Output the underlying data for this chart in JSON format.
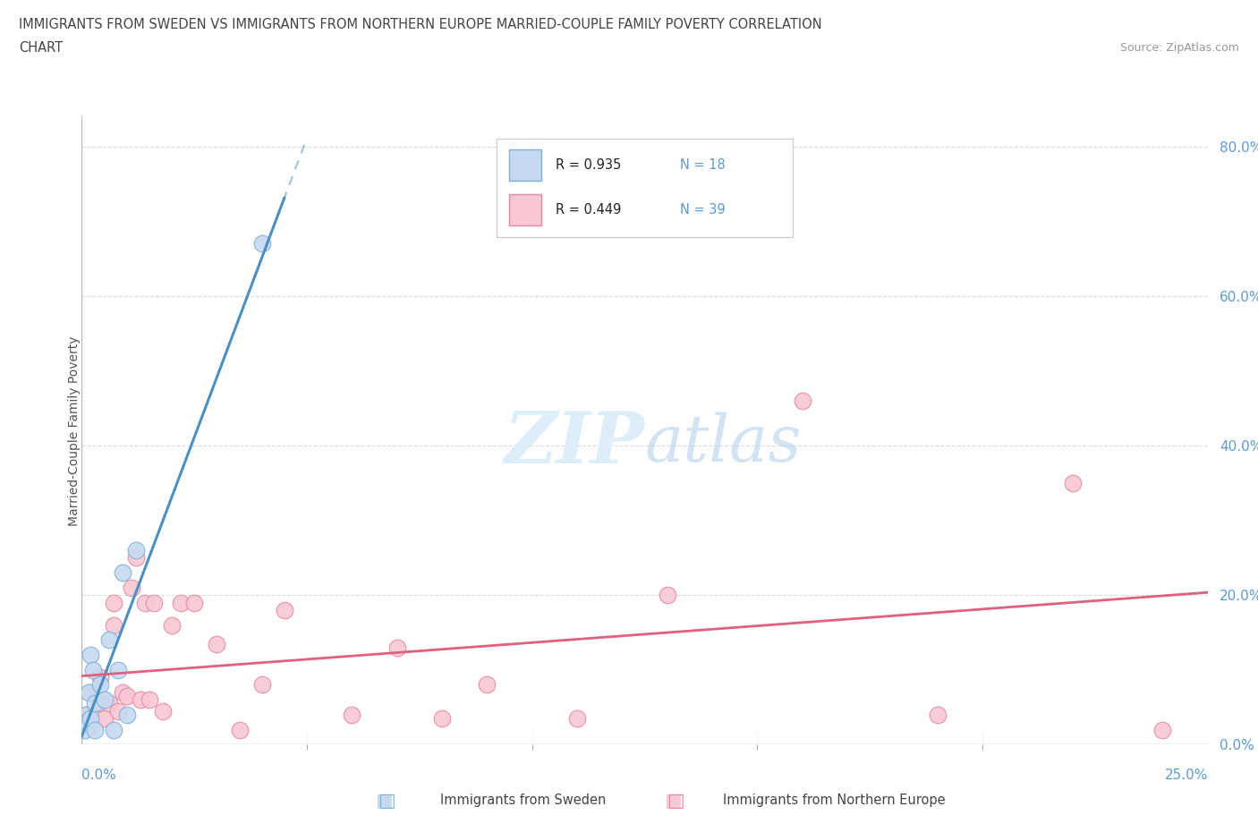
{
  "title_line1": "IMMIGRANTS FROM SWEDEN VS IMMIGRANTS FROM NORTHERN EUROPE MARRIED-COUPLE FAMILY POVERTY CORRELATION",
  "title_line2": "CHART",
  "source": "Source: ZipAtlas.com",
  "ylabel": "Married-Couple Family Poverty",
  "legend_blue_R": "R = 0.935",
  "legend_blue_N": "N = 18",
  "legend_pink_R": "R = 0.449",
  "legend_pink_N": "N = 39",
  "legend_label_blue": "Immigrants from Sweden",
  "legend_label_pink": "Immigrants from Northern Europe",
  "blue_fill": "#c5daf0",
  "blue_edge": "#7eb0d8",
  "blue_line": "#4a90c4",
  "pink_fill": "#f9c8d4",
  "pink_edge": "#e888a0",
  "pink_line": "#e06080",
  "title_color": "#444444",
  "source_color": "#999999",
  "axis_tick_color": "#5b9bd5",
  "grid_color": "#d8d8d8",
  "watermark_color": "#ddeef8",
  "blue_scatter_x": [
    0.0008,
    0.001,
    0.0012,
    0.0015,
    0.002,
    0.002,
    0.0025,
    0.003,
    0.003,
    0.004,
    0.005,
    0.006,
    0.007,
    0.008,
    0.009,
    0.01,
    0.012,
    0.04
  ],
  "blue_scatter_y": [
    0.02,
    0.04,
    0.03,
    0.07,
    0.035,
    0.12,
    0.1,
    0.02,
    0.055,
    0.08,
    0.06,
    0.14,
    0.02,
    0.1,
    0.23,
    0.04,
    0.26,
    0.67
  ],
  "pink_scatter_x": [
    0.0005,
    0.001,
    0.0015,
    0.002,
    0.002,
    0.003,
    0.004,
    0.004,
    0.005,
    0.006,
    0.007,
    0.007,
    0.008,
    0.009,
    0.01,
    0.011,
    0.012,
    0.013,
    0.014,
    0.015,
    0.016,
    0.018,
    0.02,
    0.022,
    0.025,
    0.03,
    0.035,
    0.04,
    0.045,
    0.06,
    0.07,
    0.08,
    0.09,
    0.11,
    0.13,
    0.16,
    0.19,
    0.22,
    0.24
  ],
  "pink_scatter_y": [
    0.03,
    0.04,
    0.035,
    0.025,
    0.07,
    0.04,
    0.055,
    0.09,
    0.035,
    0.055,
    0.16,
    0.19,
    0.045,
    0.07,
    0.065,
    0.21,
    0.25,
    0.06,
    0.19,
    0.06,
    0.19,
    0.045,
    0.16,
    0.19,
    0.19,
    0.135,
    0.02,
    0.08,
    0.18,
    0.04,
    0.13,
    0.035,
    0.08,
    0.035,
    0.2,
    0.46,
    0.04,
    0.35,
    0.02
  ],
  "xmin": 0.0,
  "xmax": 0.25,
  "ymin": 0.0,
  "ymax": 0.84,
  "xtick_positions": [
    0.0,
    0.05,
    0.1,
    0.15,
    0.2,
    0.25
  ],
  "ytick_positions": [
    0.0,
    0.2,
    0.4,
    0.6,
    0.8
  ],
  "ytick_labels": [
    "0.0%",
    "20.0%",
    "40.0%",
    "60.0%",
    "80.0%"
  ]
}
